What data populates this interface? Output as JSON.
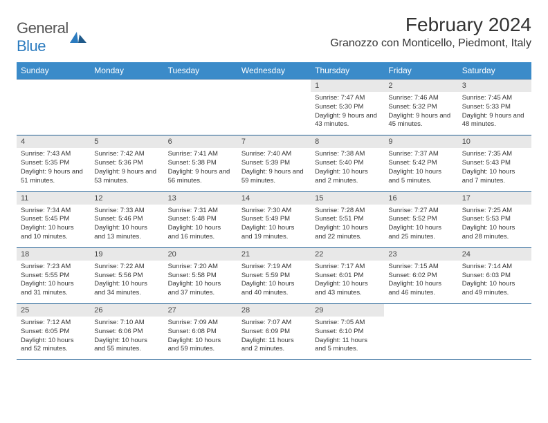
{
  "logo": {
    "general": "General",
    "blue": "Blue"
  },
  "title": "February 2024",
  "location": "Granozzo con Monticello, Piedmont, Italy",
  "colors": {
    "header_bg": "#3b8bc9",
    "header_text": "#ffffff",
    "row_border": "#1a5a8f",
    "daynum_bg": "#e8e8e8",
    "text": "#333333",
    "logo_blue": "#2b7bbf",
    "logo_gray": "#555555"
  },
  "day_headers": [
    "Sunday",
    "Monday",
    "Tuesday",
    "Wednesday",
    "Thursday",
    "Friday",
    "Saturday"
  ],
  "first_weekday": 4,
  "days": [
    {
      "n": 1,
      "sunrise": "7:47 AM",
      "sunset": "5:30 PM",
      "daylight": "9 hours and 43 minutes."
    },
    {
      "n": 2,
      "sunrise": "7:46 AM",
      "sunset": "5:32 PM",
      "daylight": "9 hours and 45 minutes."
    },
    {
      "n": 3,
      "sunrise": "7:45 AM",
      "sunset": "5:33 PM",
      "daylight": "9 hours and 48 minutes."
    },
    {
      "n": 4,
      "sunrise": "7:43 AM",
      "sunset": "5:35 PM",
      "daylight": "9 hours and 51 minutes."
    },
    {
      "n": 5,
      "sunrise": "7:42 AM",
      "sunset": "5:36 PM",
      "daylight": "9 hours and 53 minutes."
    },
    {
      "n": 6,
      "sunrise": "7:41 AM",
      "sunset": "5:38 PM",
      "daylight": "9 hours and 56 minutes."
    },
    {
      "n": 7,
      "sunrise": "7:40 AM",
      "sunset": "5:39 PM",
      "daylight": "9 hours and 59 minutes."
    },
    {
      "n": 8,
      "sunrise": "7:38 AM",
      "sunset": "5:40 PM",
      "daylight": "10 hours and 2 minutes."
    },
    {
      "n": 9,
      "sunrise": "7:37 AM",
      "sunset": "5:42 PM",
      "daylight": "10 hours and 5 minutes."
    },
    {
      "n": 10,
      "sunrise": "7:35 AM",
      "sunset": "5:43 PM",
      "daylight": "10 hours and 7 minutes."
    },
    {
      "n": 11,
      "sunrise": "7:34 AM",
      "sunset": "5:45 PM",
      "daylight": "10 hours and 10 minutes."
    },
    {
      "n": 12,
      "sunrise": "7:33 AM",
      "sunset": "5:46 PM",
      "daylight": "10 hours and 13 minutes."
    },
    {
      "n": 13,
      "sunrise": "7:31 AM",
      "sunset": "5:48 PM",
      "daylight": "10 hours and 16 minutes."
    },
    {
      "n": 14,
      "sunrise": "7:30 AM",
      "sunset": "5:49 PM",
      "daylight": "10 hours and 19 minutes."
    },
    {
      "n": 15,
      "sunrise": "7:28 AM",
      "sunset": "5:51 PM",
      "daylight": "10 hours and 22 minutes."
    },
    {
      "n": 16,
      "sunrise": "7:27 AM",
      "sunset": "5:52 PM",
      "daylight": "10 hours and 25 minutes."
    },
    {
      "n": 17,
      "sunrise": "7:25 AM",
      "sunset": "5:53 PM",
      "daylight": "10 hours and 28 minutes."
    },
    {
      "n": 18,
      "sunrise": "7:23 AM",
      "sunset": "5:55 PM",
      "daylight": "10 hours and 31 minutes."
    },
    {
      "n": 19,
      "sunrise": "7:22 AM",
      "sunset": "5:56 PM",
      "daylight": "10 hours and 34 minutes."
    },
    {
      "n": 20,
      "sunrise": "7:20 AM",
      "sunset": "5:58 PM",
      "daylight": "10 hours and 37 minutes."
    },
    {
      "n": 21,
      "sunrise": "7:19 AM",
      "sunset": "5:59 PM",
      "daylight": "10 hours and 40 minutes."
    },
    {
      "n": 22,
      "sunrise": "7:17 AM",
      "sunset": "6:01 PM",
      "daylight": "10 hours and 43 minutes."
    },
    {
      "n": 23,
      "sunrise": "7:15 AM",
      "sunset": "6:02 PM",
      "daylight": "10 hours and 46 minutes."
    },
    {
      "n": 24,
      "sunrise": "7:14 AM",
      "sunset": "6:03 PM",
      "daylight": "10 hours and 49 minutes."
    },
    {
      "n": 25,
      "sunrise": "7:12 AM",
      "sunset": "6:05 PM",
      "daylight": "10 hours and 52 minutes."
    },
    {
      "n": 26,
      "sunrise": "7:10 AM",
      "sunset": "6:06 PM",
      "daylight": "10 hours and 55 minutes."
    },
    {
      "n": 27,
      "sunrise": "7:09 AM",
      "sunset": "6:08 PM",
      "daylight": "10 hours and 59 minutes."
    },
    {
      "n": 28,
      "sunrise": "7:07 AM",
      "sunset": "6:09 PM",
      "daylight": "11 hours and 2 minutes."
    },
    {
      "n": 29,
      "sunrise": "7:05 AM",
      "sunset": "6:10 PM",
      "daylight": "11 hours and 5 minutes."
    }
  ],
  "labels": {
    "sunrise": "Sunrise:",
    "sunset": "Sunset:",
    "daylight": "Daylight:"
  }
}
